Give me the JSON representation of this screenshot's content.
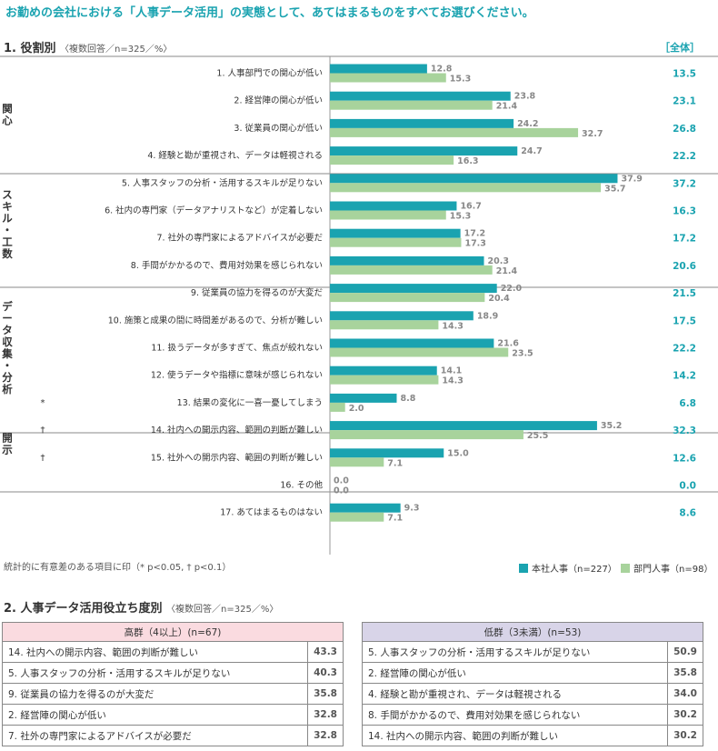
{
  "title": "お勤めの会社における「人事データ活用」の実態として、あてはまるものをすべてお選びください。",
  "section1": {
    "title": "1. 役割別",
    "subtitle": "〈複数回答／n=325／%〉",
    "total_label": "［全体］"
  },
  "note": "統計的に有意差のある項目に印（* p<0.05, † p<0.1）",
  "colors": {
    "series_hq": "#1aa3b0",
    "series_dept": "#a8d39c",
    "accent": "#1aa3b0",
    "high_header": "#fadbe0",
    "low_header": "#d8d4e8"
  },
  "chart_data": {
    "type": "bar",
    "orientation": "horizontal",
    "categories": [
      "1. 人事部門での関心が低い",
      "2. 経営陣の関心が低い",
      "3. 従業員の関心が低い",
      "4. 経験と勘が重視され、データは軽視される",
      "5. 人事スタッフの分析・活用するスキルが足りない",
      "6. 社内の専門家（データアナリストなど）が定着しない",
      "7. 社外の専門家によるアドバイスが必要だ",
      "8. 手間がかかるので、費用対効果を感じられない",
      "9. 従業員の協力を得るのが大変だ",
      "10. 施策と成果の間に時間差があるので、分析が難しい",
      "11. 扱うデータが多すぎて、焦点が絞れない",
      "12. 使うデータや指標に意味が感じられない",
      "13. 結果の変化に一喜一憂してしまう",
      "14. 社内への開示内容、範囲の判断が難しい",
      "15. 社外への開示内容、範囲の判断が難しい",
      "16. その他",
      "17. あてはまるものはない"
    ],
    "groups": [
      {
        "label": "関心",
        "items": [
          0,
          1,
          2,
          3
        ]
      },
      {
        "label": "スキル・工数",
        "items": [
          4,
          5,
          6,
          7
        ]
      },
      {
        "label": "データ収集・分析",
        "items": [
          8,
          9,
          10,
          11,
          12
        ]
      },
      {
        "label": "開示",
        "items": [
          13,
          14
        ]
      }
    ],
    "marks": [
      "",
      "",
      "",
      "",
      "",
      "",
      "",
      "",
      "",
      "",
      "",
      "",
      "*",
      "†",
      "†",
      "",
      ""
    ],
    "series": [
      {
        "name": "本社人事（n=227）",
        "values": [
          12.8,
          23.8,
          24.2,
          24.7,
          37.9,
          16.7,
          17.2,
          20.3,
          22.0,
          18.9,
          21.6,
          14.1,
          8.8,
          35.2,
          15.0,
          0.0,
          9.3
        ]
      },
      {
        "name": "部門人事（n=98）",
        "values": [
          15.3,
          21.4,
          32.7,
          16.3,
          35.7,
          15.3,
          17.3,
          21.4,
          20.4,
          14.3,
          23.5,
          14.3,
          2.0,
          25.5,
          7.1,
          0.0,
          7.1
        ]
      }
    ],
    "totals": [
      13.5,
      23.1,
      26.8,
      22.2,
      37.2,
      16.3,
      17.2,
      20.6,
      21.5,
      17.5,
      22.2,
      14.2,
      6.8,
      32.3,
      12.6,
      0.0,
      8.6
    ],
    "xlim": [
      0,
      40
    ]
  },
  "section2": {
    "title": "2. 人事データ活用役立ち度別",
    "subtitle": "〈複数回答／n=325／%〉",
    "high": {
      "header": "高群（4以上）(n=67)",
      "rows": [
        {
          "label": "14.  社内への開示内容、範囲の判断が難しい",
          "value": "43.3"
        },
        {
          "label": "5.   人事スタッフの分析・活用するスキルが足りない",
          "value": "40.3"
        },
        {
          "label": "9.   従業員の協力を得るのが大変だ",
          "value": "35.8"
        },
        {
          "label": "2.   経営陣の関心が低い",
          "value": "32.8"
        },
        {
          "label": "7.   社外の専門家によるアドバイスが必要だ",
          "value": "32.8"
        }
      ]
    },
    "low": {
      "header": "低群（3未満）(n=53)",
      "rows": [
        {
          "label": "5. 人事スタッフの分析・活用するスキルが足りない",
          "value": "50.9"
        },
        {
          "label": "2. 経営陣の関心が低い",
          "value": "35.8"
        },
        {
          "label": "4. 経験と勘が重視され、データは軽視される",
          "value": "34.0"
        },
        {
          "label": "8. 手間がかかるので、費用対効果を感じられない",
          "value": "30.2"
        },
        {
          "label": "14. 社内への開示内容、範囲の判断が難しい",
          "value": "30.2"
        }
      ]
    }
  }
}
